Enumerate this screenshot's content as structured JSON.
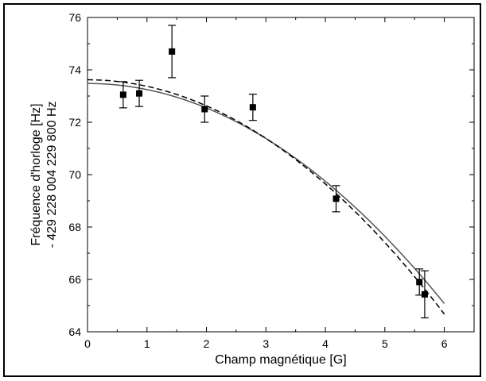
{
  "chart_data": {
    "type": "scatter",
    "title": "",
    "xlabel": "Champ magnétique [G]",
    "ylabel_lines": [
      "Fréquence d'horloge [Hz]",
      "- 429 228 004 229 800 Hz"
    ],
    "xlim": [
      0,
      6.5
    ],
    "ylim": [
      64,
      76
    ],
    "x_ticks": [
      0,
      1,
      2,
      3,
      4,
      5,
      6
    ],
    "y_ticks": [
      64,
      66,
      68,
      70,
      72,
      74,
      76
    ],
    "x_minor_step": 0.5,
    "y_minor_step": 1,
    "grid": false,
    "legend": "none",
    "points": [
      {
        "x": 0.6,
        "y": 73.05,
        "err": 0.5
      },
      {
        "x": 0.87,
        "y": 73.1,
        "err": 0.5
      },
      {
        "x": 1.42,
        "y": 74.7,
        "err": 1.0
      },
      {
        "x": 1.97,
        "y": 72.5,
        "err": 0.5
      },
      {
        "x": 2.78,
        "y": 72.57,
        "err": 0.5
      },
      {
        "x": 4.18,
        "y": 69.08,
        "err": 0.5
      },
      {
        "x": 5.58,
        "y": 65.9,
        "err": 0.5
      },
      {
        "x": 5.67,
        "y": 65.43,
        "err": 0.9
      }
    ],
    "fits": [
      {
        "style": "solid",
        "a": 73.48,
        "b": -0.2334
      },
      {
        "style": "dashed",
        "a": 73.62,
        "b": -0.2485
      }
    ],
    "fit_x_range": [
      0,
      6
    ],
    "colors": {
      "fit_solid": "#555555",
      "fit_dashed": "#000000",
      "points": "#000000"
    }
  }
}
